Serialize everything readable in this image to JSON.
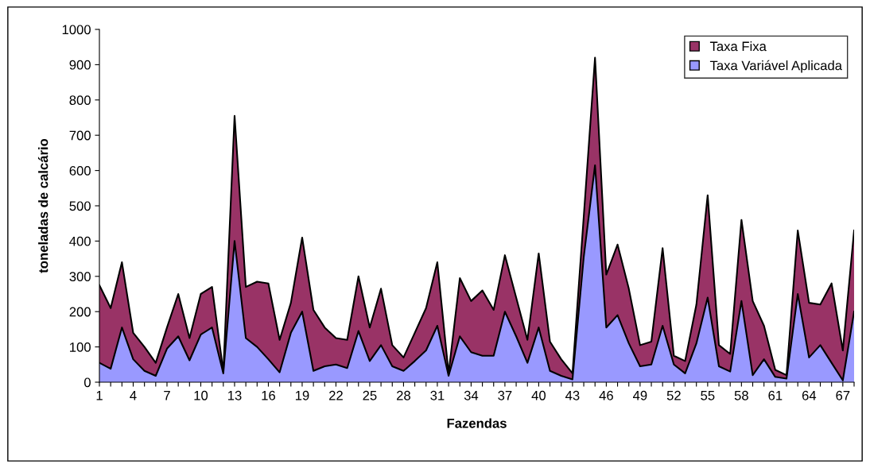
{
  "chart_data": {
    "type": "area",
    "xlabel": "Fazendas",
    "ylabel": "toneladas de calcário",
    "categories": [
      "1",
      null,
      null,
      "4",
      null,
      null,
      "7",
      null,
      null,
      "10",
      null,
      null,
      "13",
      null,
      null,
      "16",
      null,
      null,
      "19",
      null,
      null,
      "22",
      null,
      null,
      "25",
      null,
      null,
      "28",
      null,
      null,
      "31",
      null,
      null,
      "34",
      null,
      null,
      "37",
      null,
      null,
      "40",
      null,
      null,
      "43",
      null,
      null,
      "46",
      null,
      null,
      "49",
      null,
      null,
      "52",
      null,
      null,
      "55",
      null,
      null,
      "58",
      null,
      null,
      "61",
      null,
      null,
      "64",
      null,
      null,
      "67",
      null
    ],
    "series": [
      {
        "name": "Taxa Fixa",
        "color": "#993366",
        "values": [
          275,
          210,
          340,
          140,
          100,
          55,
          155,
          250,
          125,
          250,
          270,
          30,
          755,
          270,
          285,
          280,
          120,
          225,
          410,
          205,
          155,
          125,
          120,
          300,
          155,
          265,
          105,
          70,
          140,
          210,
          340,
          25,
          295,
          230,
          260,
          205,
          360,
          240,
          120,
          365,
          115,
          65,
          25,
          470,
          920,
          305,
          390,
          265,
          105,
          115,
          380,
          75,
          60,
          220,
          530,
          105,
          80,
          460,
          230,
          160,
          35,
          20,
          430,
          225,
          220,
          280,
          90,
          430
        ]
      },
      {
        "name": "Taxa Variável Aplicada",
        "color": "#9999ff",
        "values": [
          55,
          38,
          155,
          65,
          32,
          18,
          95,
          130,
          62,
          135,
          155,
          25,
          400,
          125,
          100,
          65,
          28,
          140,
          200,
          32,
          45,
          50,
          40,
          145,
          60,
          105,
          45,
          32,
          60,
          90,
          160,
          18,
          130,
          85,
          75,
          75,
          200,
          130,
          55,
          155,
          32,
          18,
          8,
          355,
          615,
          155,
          190,
          110,
          45,
          50,
          160,
          50,
          25,
          110,
          240,
          45,
          30,
          230,
          20,
          65,
          15,
          10,
          250,
          70,
          105,
          55,
          5,
          200
        ]
      }
    ],
    "ylim": [
      0,
      1000
    ],
    "yticks": [
      0,
      100,
      200,
      300,
      400,
      500,
      600,
      700,
      800,
      900,
      1000
    ],
    "grid": false,
    "legend": "top right"
  }
}
